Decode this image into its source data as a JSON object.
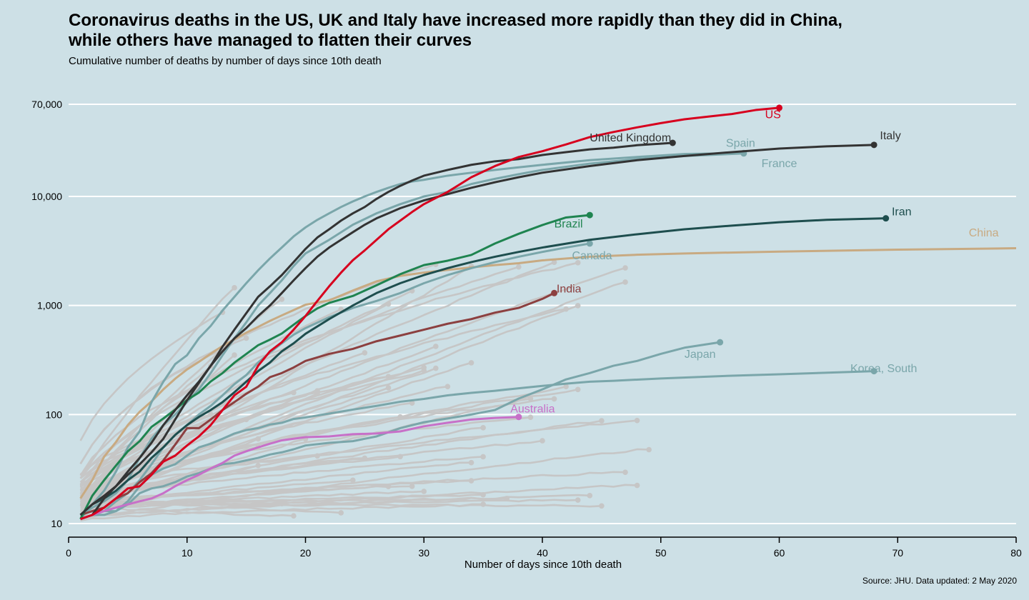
{
  "header": {
    "title_line1": "Coronavirus deaths in the US, UK and Italy have increased more rapidly than they did in China,",
    "title_line2": "while others have managed to flatten their curves",
    "subtitle": "Cumulative number of deaths by number of days since 10th death"
  },
  "footer": {
    "source": "Source: JHU. Data updated: 2 May 2020"
  },
  "chart_data": {
    "type": "line",
    "title": "Coronavirus deaths in the US, UK and Italy have increased more rapidly than they did in China, while others have managed to flatten their curves",
    "subtitle": "Cumulative number of deaths by number of days since 10th death",
    "xlabel": "Number of days since 10th death",
    "ylabel": "",
    "xlim": [
      0,
      80
    ],
    "ylim": [
      10,
      70000
    ],
    "y_scale": "log",
    "x_ticks": [
      0,
      10,
      20,
      30,
      40,
      50,
      60,
      70,
      80
    ],
    "y_ticks": [
      10,
      100,
      1000,
      10000,
      70000
    ],
    "y_tick_labels": [
      "10",
      "100",
      "1,000",
      "10,000",
      "70,000"
    ],
    "grid": "horizontal",
    "legend": "none (direct labels)",
    "background": "#cde0e6",
    "highlighted_series": [
      {
        "name": "US",
        "color": "#d7001e",
        "label_at": [
          58.8,
          52000
        ],
        "x": [
          1,
          2,
          3,
          4,
          5,
          6,
          7,
          8,
          9,
          10,
          11,
          12,
          13,
          14,
          15,
          16,
          17,
          18,
          19,
          20,
          21,
          22,
          23,
          24,
          25,
          26,
          27,
          28,
          29,
          30,
          32,
          34,
          36,
          38,
          40,
          42,
          44,
          46,
          48,
          50,
          52,
          54,
          56,
          58,
          60
        ],
        "y": [
          11,
          12,
          14,
          17,
          21,
          22,
          28,
          37,
          42,
          52,
          63,
          80,
          110,
          150,
          180,
          280,
          380,
          460,
          600,
          800,
          1100,
          1500,
          2000,
          2600,
          3200,
          4000,
          5000,
          6000,
          7200,
          8500,
          11000,
          15000,
          19000,
          23000,
          26000,
          30000,
          35000,
          39000,
          43000,
          47000,
          51000,
          54000,
          57000,
          62000,
          65000
        ]
      },
      {
        "name": "United Kingdom",
        "color": "#333333",
        "label_at": [
          44,
          32000
        ],
        "x": [
          2,
          3,
          4,
          5,
          6,
          7,
          8,
          9,
          10,
          11,
          12,
          13,
          14,
          15,
          16,
          17,
          18,
          19,
          20,
          21,
          22,
          23,
          24,
          25,
          26,
          27,
          28,
          29,
          30,
          32,
          34,
          36,
          38,
          40,
          42,
          44,
          46,
          48,
          50,
          51
        ],
        "y": [
          12,
          17,
          22,
          28,
          35,
          45,
          60,
          90,
          135,
          195,
          280,
          420,
          600,
          850,
          1200,
          1500,
          1900,
          2500,
          3300,
          4200,
          5000,
          6000,
          7000,
          8000,
          9500,
          11000,
          12500,
          14000,
          15500,
          17500,
          19500,
          21000,
          22000,
          24000,
          25500,
          27000,
          28000,
          29500,
          30500,
          31000
        ]
      },
      {
        "name": "Italy",
        "color": "#333333",
        "label_at": [
          68.5,
          33500
        ],
        "x": [
          1,
          2,
          3,
          4,
          5,
          6,
          7,
          8,
          9,
          10,
          11,
          12,
          13,
          14,
          15,
          16,
          17,
          18,
          19,
          20,
          21,
          22,
          23,
          24,
          25,
          26,
          27,
          28,
          30,
          32,
          34,
          36,
          38,
          40,
          44,
          48,
          52,
          56,
          60,
          64,
          68
        ],
        "y": [
          12,
          15,
          18,
          22,
          30,
          40,
          55,
          80,
          110,
          150,
          200,
          280,
          380,
          500,
          620,
          800,
          1000,
          1300,
          1700,
          2200,
          2800,
          3400,
          4000,
          4700,
          5500,
          6300,
          7000,
          7800,
          9200,
          10500,
          12000,
          13500,
          15000,
          16500,
          19000,
          21500,
          23500,
          25500,
          27500,
          28800,
          29700
        ]
      },
      {
        "name": "Spain",
        "color": "#7aa6aa",
        "label_at": [
          55.5,
          28500
        ],
        "x": [
          1,
          2,
          3,
          4,
          5,
          6,
          7,
          8,
          9,
          10,
          11,
          12,
          13,
          14,
          15,
          16,
          17,
          18,
          19,
          20,
          21,
          22,
          23,
          24,
          25,
          26,
          27,
          28,
          29,
          30,
          32,
          34,
          36,
          38,
          40,
          44,
          48,
          52,
          57
        ],
        "y": [
          11,
          15,
          20,
          30,
          50,
          70,
          130,
          200,
          290,
          350,
          500,
          650,
          900,
          1200,
          1600,
          2100,
          2700,
          3400,
          4300,
          5200,
          6100,
          7000,
          8000,
          9000,
          10000,
          11000,
          12000,
          13000,
          13700,
          14200,
          15500,
          16500,
          17500,
          18500,
          19500,
          21500,
          23000,
          24500,
          25000
        ]
      },
      {
        "name": "France",
        "color": "#7aa6aa",
        "label_at": [
          58.5,
          18500
        ],
        "x": [
          1,
          2,
          3,
          4,
          5,
          6,
          7,
          8,
          9,
          10,
          11,
          12,
          13,
          14,
          15,
          16,
          17,
          18,
          19,
          20,
          22,
          24,
          26,
          28,
          30,
          32,
          34,
          36,
          38,
          40,
          44,
          48,
          52,
          57
        ],
        "y": [
          12,
          14,
          16,
          19,
          25,
          40,
          60,
          80,
          100,
          130,
          170,
          240,
          350,
          500,
          700,
          1000,
          1300,
          1700,
          2300,
          3000,
          4000,
          5500,
          7000,
          8500,
          10000,
          11000,
          13000,
          14500,
          16000,
          17500,
          20000,
          22000,
          23500,
          24800
        ]
      },
      {
        "name": "Iran",
        "color": "#1e4e4e",
        "label_at": [
          69.5,
          6700
        ],
        "x": [
          1,
          2,
          3,
          4,
          5,
          6,
          7,
          8,
          9,
          10,
          11,
          12,
          13,
          14,
          15,
          16,
          17,
          18,
          19,
          20,
          22,
          24,
          26,
          28,
          30,
          32,
          34,
          36,
          38,
          40,
          44,
          48,
          52,
          56,
          60,
          64,
          69
        ],
        "y": [
          12,
          15,
          17,
          20,
          25,
          30,
          40,
          50,
          65,
          80,
          95,
          110,
          130,
          160,
          200,
          250,
          300,
          380,
          450,
          550,
          750,
          1000,
          1300,
          1600,
          1900,
          2200,
          2500,
          2800,
          3100,
          3400,
          4000,
          4500,
          5000,
          5400,
          5800,
          6100,
          6300
        ]
      },
      {
        "name": "China",
        "color": "#c8aa82",
        "label_at": [
          76,
          4300
        ],
        "x": [
          1,
          2,
          3,
          4,
          5,
          6,
          7,
          8,
          9,
          10,
          11,
          12,
          13,
          14,
          15,
          16,
          17,
          18,
          19,
          20,
          22,
          24,
          26,
          28,
          30,
          32,
          34,
          36,
          38,
          40,
          44,
          48,
          52,
          60,
          70,
          80
        ],
        "y": [
          17,
          25,
          41,
          56,
          80,
          106,
          132,
          170,
          213,
          259,
          304,
          361,
          425,
          490,
          563,
          636,
          722,
          811,
          908,
          1016,
          1113,
          1370,
          1665,
          1868,
          2004,
          2118,
          2236,
          2345,
          2442,
          2592,
          2800,
          2920,
          3000,
          3120,
          3250,
          3350
        ]
      },
      {
        "name": "Brazil",
        "color": "#1f8450",
        "label_at": [
          41,
          5200
        ],
        "x": [
          1,
          2,
          3,
          4,
          5,
          6,
          7,
          8,
          9,
          10,
          11,
          12,
          13,
          14,
          15,
          16,
          17,
          18,
          19,
          20,
          21,
          22,
          24,
          26,
          28,
          30,
          32,
          34,
          36,
          38,
          40,
          42,
          44
        ],
        "y": [
          11,
          18,
          25,
          34,
          46,
          57,
          77,
          92,
          111,
          136,
          159,
          201,
          240,
          299,
          359,
          432,
          486,
          553,
          667,
          800,
          941,
          1056,
          1223,
          1532,
          1937,
          2347,
          2575,
          2906,
          3704,
          4543,
          5466,
          6412,
          6750
        ]
      },
      {
        "name": "Canada",
        "color": "#7aa6aa",
        "label_at": [
          42.5,
          2650
        ],
        "x": [
          1,
          2,
          3,
          4,
          5,
          6,
          7,
          8,
          9,
          10,
          11,
          12,
          13,
          14,
          15,
          16,
          17,
          18,
          19,
          20,
          22,
          24,
          26,
          28,
          30,
          32,
          34,
          36,
          38,
          40,
          42,
          44
        ],
        "y": [
          12,
          13,
          13,
          16,
          19,
          25,
          35,
          50,
          65,
          80,
          100,
          120,
          150,
          190,
          230,
          300,
          370,
          450,
          540,
          620,
          780,
          950,
          1100,
          1300,
          1600,
          1900,
          2200,
          2500,
          2800,
          3100,
          3400,
          3700
        ]
      },
      {
        "name": "India",
        "color": "#8c4040",
        "label_at": [
          41.2,
          1320
        ],
        "x": [
          1,
          2,
          3,
          4,
          5,
          6,
          7,
          8,
          9,
          10,
          11,
          12,
          13,
          14,
          15,
          16,
          17,
          18,
          19,
          20,
          22,
          24,
          26,
          28,
          30,
          32,
          34,
          36,
          38,
          40,
          41
        ],
        "y": [
          12,
          13,
          14,
          17,
          19,
          24,
          29,
          38,
          53,
          75,
          75,
          90,
          110,
          130,
          155,
          180,
          220,
          240,
          270,
          310,
          360,
          400,
          470,
          530,
          600,
          680,
          750,
          860,
          950,
          1150,
          1300
        ]
      },
      {
        "name": "Japan",
        "color": "#7aa6aa",
        "label_at": [
          52,
          330
        ],
        "x": [
          1,
          2,
          3,
          4,
          5,
          6,
          7,
          8,
          9,
          10,
          11,
          12,
          13,
          14,
          15,
          16,
          17,
          18,
          19,
          20,
          22,
          24,
          26,
          28,
          30,
          32,
          34,
          36,
          38,
          40,
          42,
          44,
          46,
          48,
          50,
          52,
          55
        ],
        "y": [
          11,
          12,
          13,
          13,
          15,
          19,
          21,
          22,
          24,
          27,
          29,
          32,
          35,
          36,
          38,
          40,
          43,
          45,
          48,
          52,
          55,
          57,
          63,
          75,
          85,
          92,
          100,
          110,
          140,
          170,
          210,
          240,
          280,
          310,
          360,
          410,
          460
        ]
      },
      {
        "name": "Korea, South",
        "color": "#7aa6aa",
        "label_at": [
          66,
          245
        ],
        "x": [
          1,
          2,
          3,
          4,
          5,
          6,
          7,
          8,
          9,
          10,
          11,
          12,
          13,
          14,
          15,
          16,
          17,
          18,
          19,
          20,
          22,
          24,
          26,
          28,
          30,
          32,
          34,
          36,
          38,
          40,
          42,
          44,
          46,
          50,
          55,
          60,
          68
        ],
        "y": [
          11,
          12,
          12,
          13,
          16,
          22,
          28,
          32,
          35,
          42,
          50,
          54,
          60,
          67,
          72,
          75,
          81,
          84,
          91,
          94,
          102,
          111,
          120,
          131,
          139,
          150,
          158,
          165,
          174,
          183,
          192,
          200,
          204,
          214,
          225,
          234,
          250
        ]
      },
      {
        "name": "Australia",
        "color": "#c770c8",
        "label_at": [
          37.3,
          104
        ],
        "x": [
          1,
          2,
          3,
          4,
          5,
          6,
          7,
          8,
          9,
          10,
          11,
          12,
          13,
          14,
          15,
          16,
          17,
          18,
          19,
          20,
          22,
          24,
          26,
          28,
          30,
          32,
          34,
          36,
          38
        ],
        "y": [
          11,
          12,
          13,
          14,
          15,
          16,
          17,
          19,
          22,
          25,
          28,
          32,
          36,
          42,
          46,
          50,
          54,
          58,
          60,
          62,
          63,
          66,
          67,
          70,
          78,
          84,
          90,
          93,
          95
        ]
      }
    ]
  }
}
